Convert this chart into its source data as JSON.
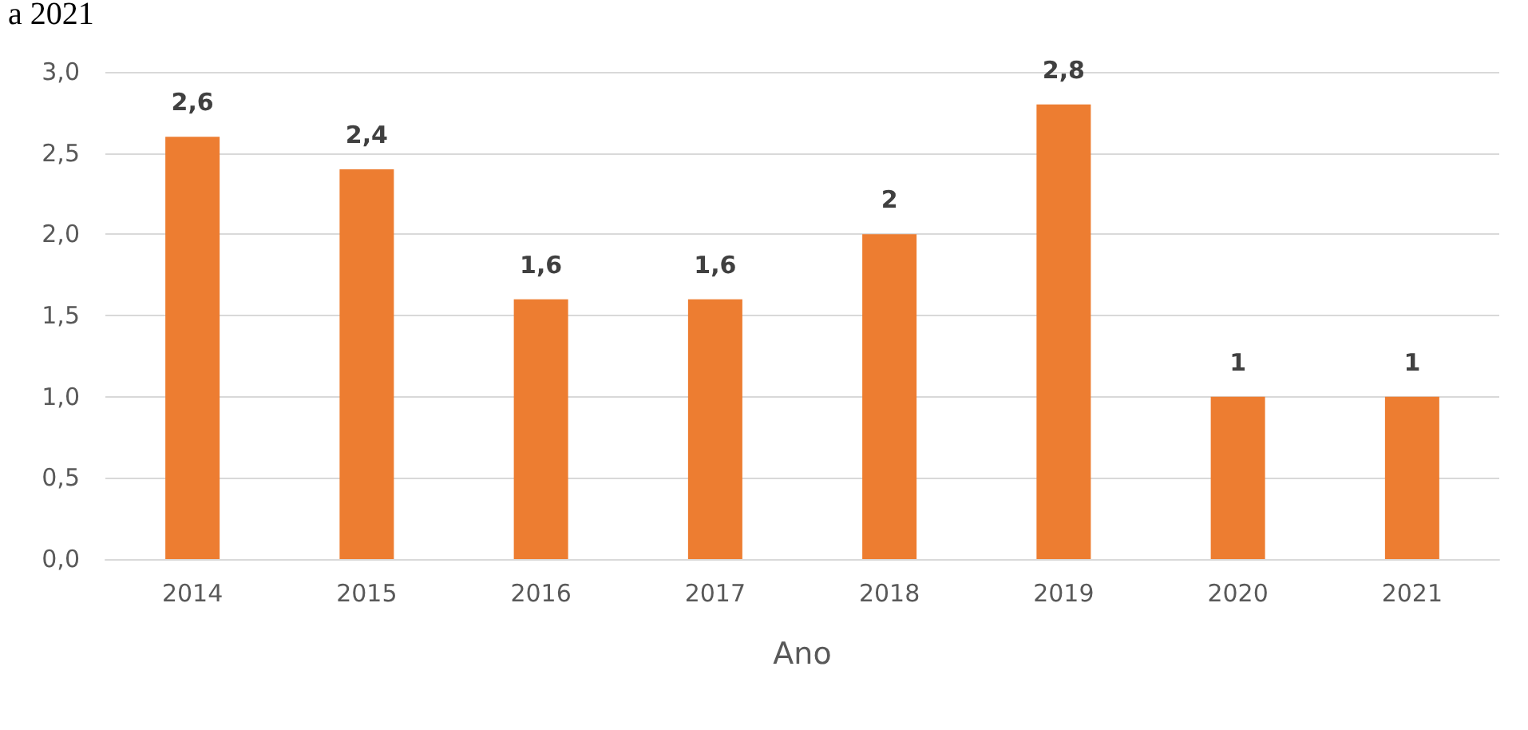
{
  "chart_data": {
    "type": "bar",
    "title": "a 2021",
    "xlabel": "Ano",
    "categories": [
      "2014",
      "2015",
      "2016",
      "2017",
      "2018",
      "2019",
      "2020",
      "2021"
    ],
    "values": [
      2.6,
      2.4,
      1.6,
      1.6,
      2,
      2.8,
      1,
      1
    ],
    "value_labels": [
      "2,6",
      "2,4",
      "1,6",
      "1,6",
      "2",
      "2,8",
      "1",
      "1"
    ],
    "color": "#ed7d31",
    "ylim": [
      0,
      3
    ],
    "yticks": [
      {
        "value": 0,
        "label": "0,0"
      },
      {
        "value": 0.5,
        "label": "0,5"
      },
      {
        "value": 1,
        "label": "1,0"
      },
      {
        "value": 1.5,
        "label": "1,5"
      },
      {
        "value": 2,
        "label": "2,0"
      },
      {
        "value": 2.5,
        "label": "2,5"
      },
      {
        "value": 3,
        "label": "3,0"
      }
    ],
    "grid": "y"
  }
}
